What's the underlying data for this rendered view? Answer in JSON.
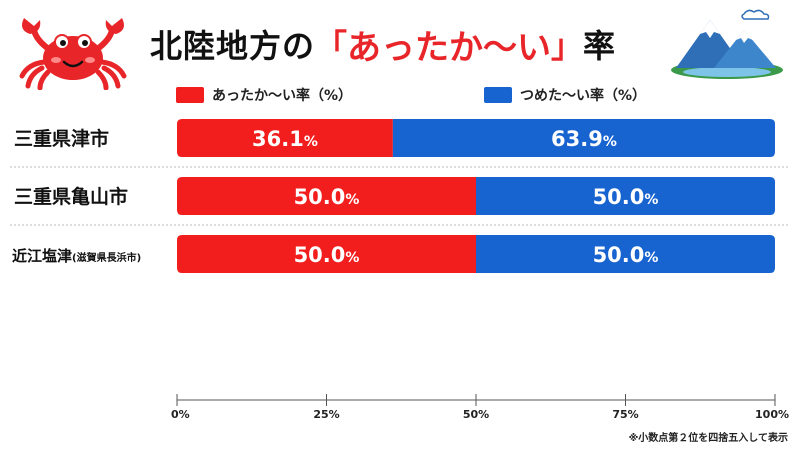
{
  "header": {
    "title_main": "北陸地方の",
    "bracket_open": "「",
    "title_highlight": "あったか〜い",
    "bracket_close": "」",
    "title_suffix": "率"
  },
  "colors": {
    "warm": "#f21d1d",
    "cold": "#1763cf",
    "accent": "#e8262a"
  },
  "icons": {
    "left": "crab-icon",
    "right": "mountain-icon"
  },
  "chart_data": {
    "type": "bar",
    "orientation": "horizontal",
    "stacked": true,
    "categories": [
      "三重県津市",
      "三重県亀山市",
      "近江塩津"
    ],
    "category_notes": [
      "",
      "",
      "(滋賀県長浜市)"
    ],
    "series": [
      {
        "name": "あったか〜い率（%）",
        "values": [
          36.1,
          50.0,
          50.0
        ],
        "color": "#f21d1d"
      },
      {
        "name": "つめた〜い率（%）",
        "values": [
          63.9,
          50.0,
          50.0
        ],
        "color": "#1763cf"
      }
    ],
    "value_labels": [
      [
        "36.1",
        "50.0",
        "50.0"
      ],
      [
        "63.9",
        "50.0",
        "50.0"
      ]
    ],
    "value_suffix": "%",
    "xlim": [
      0,
      100
    ],
    "x_ticks": [
      0,
      25,
      50,
      75,
      100
    ],
    "x_tick_labels": [
      "0%",
      "25%",
      "50%",
      "75%",
      "100%"
    ],
    "legend": "top",
    "grid": false
  },
  "footnote": "※小数点第２位を四捨五入して表示"
}
